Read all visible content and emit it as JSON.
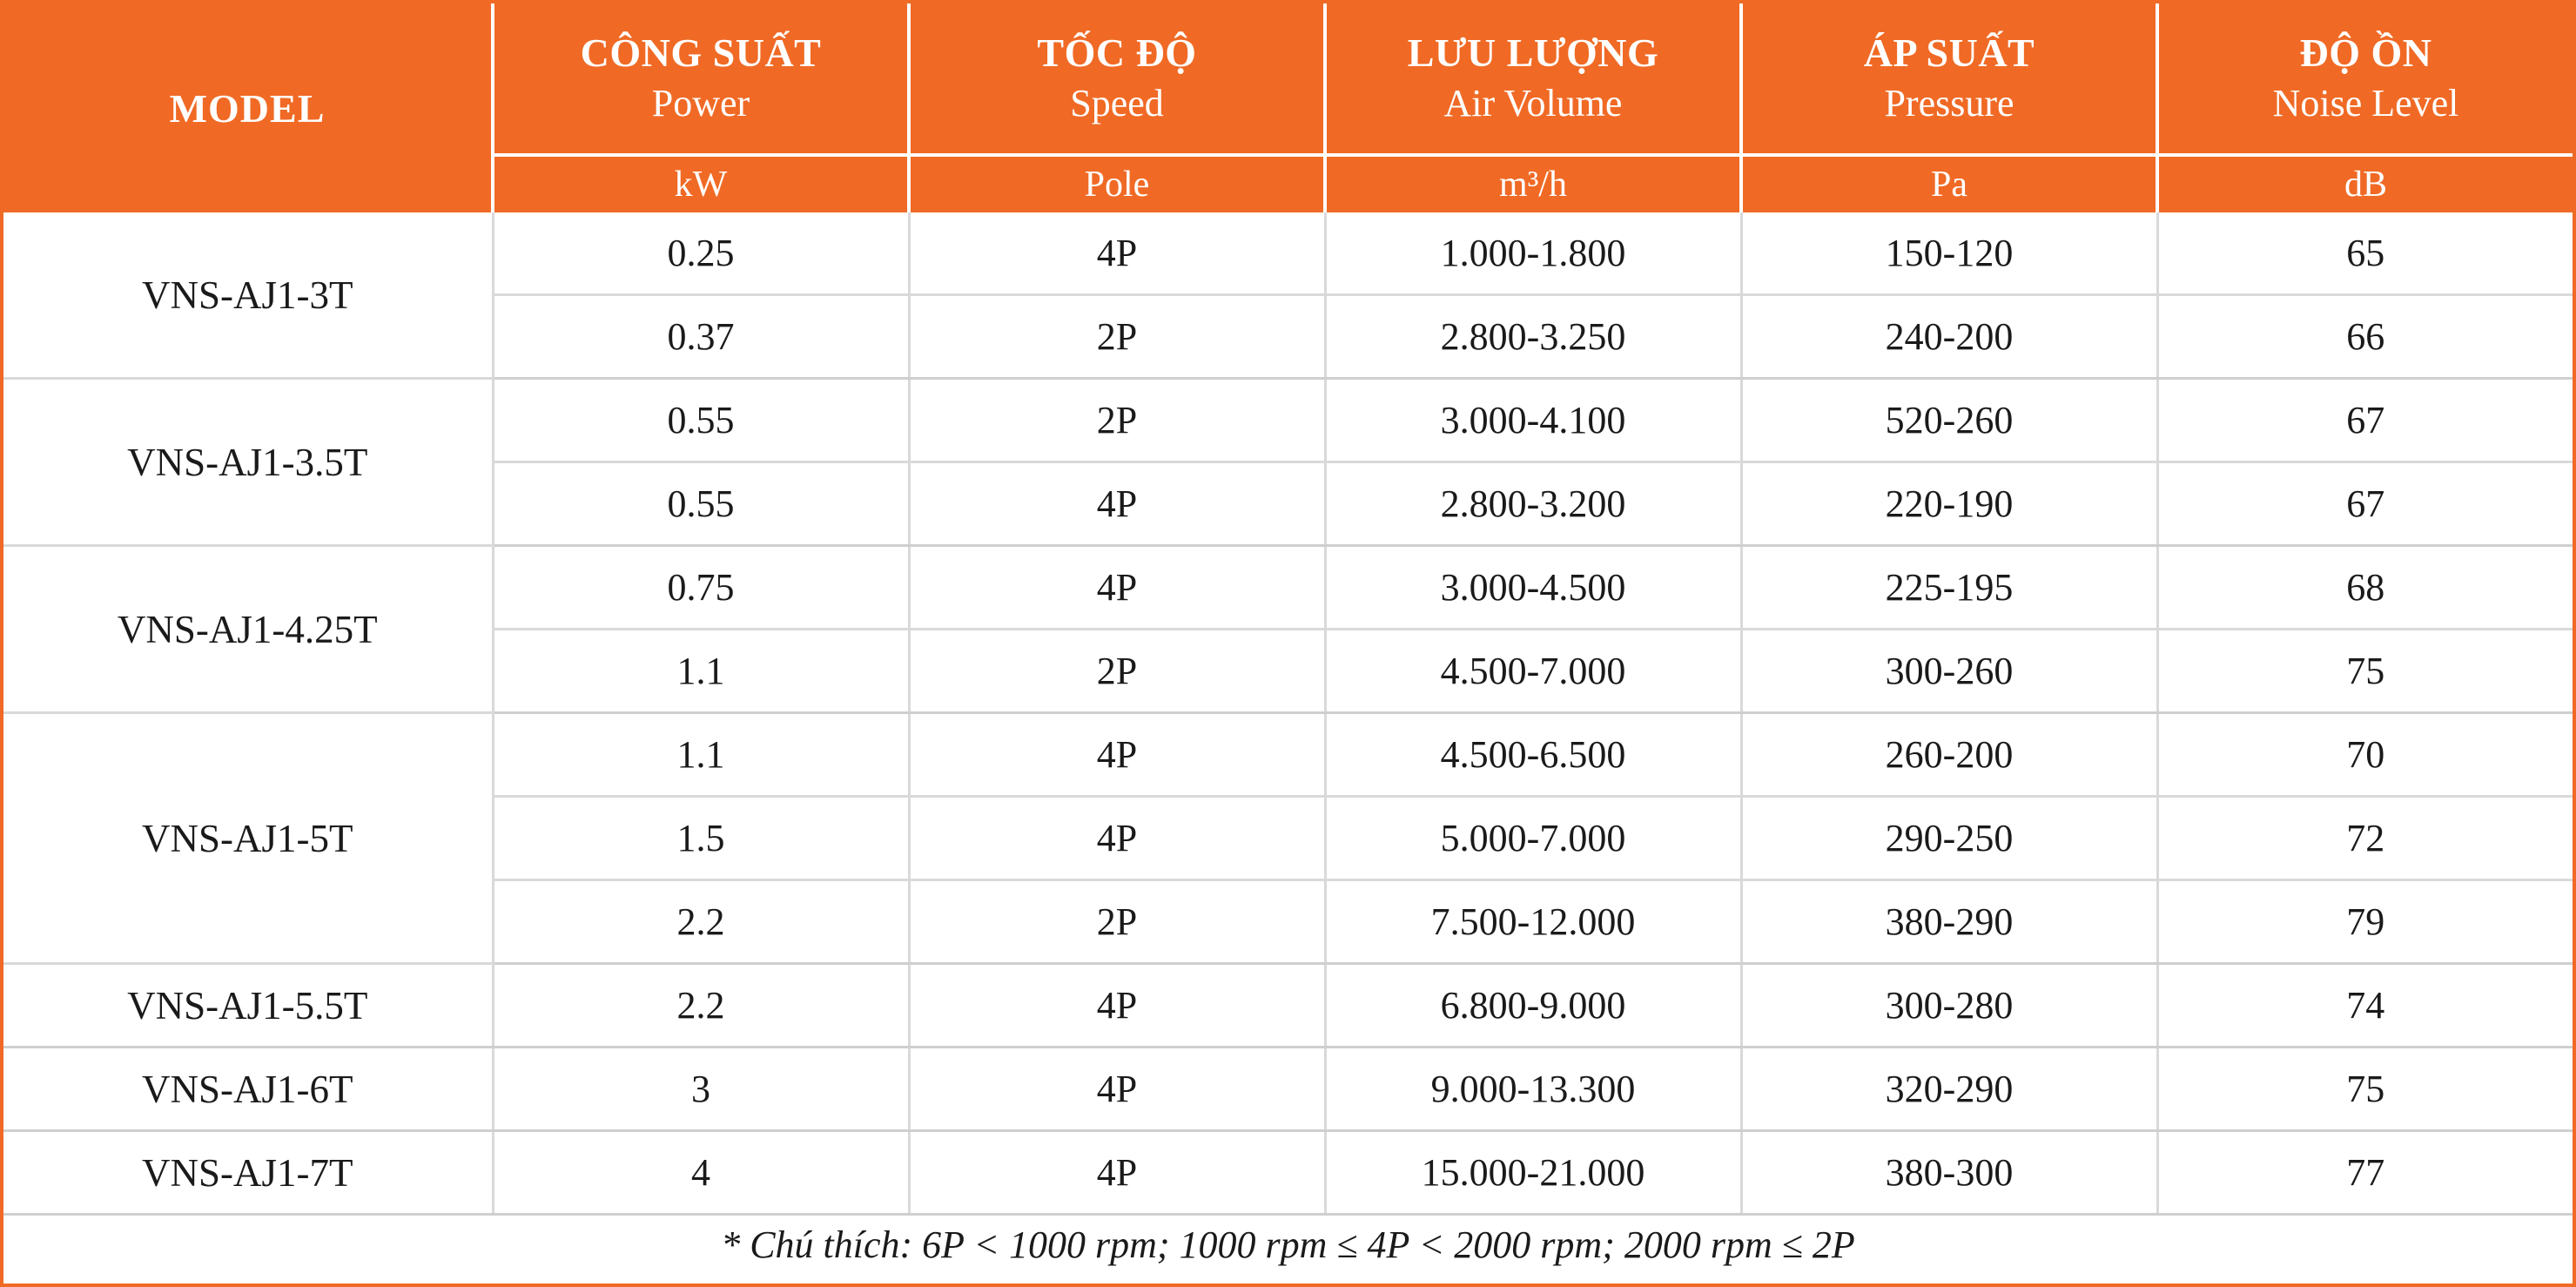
{
  "header": {
    "model": "MODEL",
    "columns": [
      {
        "vi": "CÔNG SUẤT",
        "en": "Power",
        "unit": "kW"
      },
      {
        "vi": "TỐC ĐỘ",
        "en": "Speed",
        "unit": "Pole"
      },
      {
        "vi": "LƯU LƯỢNG",
        "en": "Air Volume",
        "unit": "m³/h"
      },
      {
        "vi": "ÁP SUẤT",
        "en": "Pressure",
        "unit": "Pa"
      },
      {
        "vi": "ĐỘ ỒN",
        "en": "Noise Level",
        "unit": "dB"
      }
    ]
  },
  "rows": [
    {
      "model": "VNS-AJ1-3T",
      "power": "0.25",
      "speed": "4P",
      "air": "1.000-1.800",
      "pressure": "150-120",
      "noise": "65"
    },
    {
      "power": "0.37",
      "speed": "2P",
      "air": "2.800-3.250",
      "pressure": "240-200",
      "noise": "66"
    },
    {
      "model": "VNS-AJ1-3.5T",
      "power": "0.55",
      "speed": "2P",
      "air": "3.000-4.100",
      "pressure": "520-260",
      "noise": "67"
    },
    {
      "power": "0.55",
      "speed": "4P",
      "air": "2.800-3.200",
      "pressure": "220-190",
      "noise": "67"
    },
    {
      "model": "VNS-AJ1-4.25T",
      "power": "0.75",
      "speed": "4P",
      "air": "3.000-4.500",
      "pressure": "225-195",
      "noise": "68"
    },
    {
      "power": "1.1",
      "speed": "2P",
      "air": "4.500-7.000",
      "pressure": "300-260",
      "noise": "75"
    },
    {
      "model": "VNS-AJ1-5T",
      "power": "1.1",
      "speed": "4P",
      "air": "4.500-6.500",
      "pressure": "260-200",
      "noise": "70"
    },
    {
      "power": "1.5",
      "speed": "4P",
      "air": "5.000-7.000",
      "pressure": "290-250",
      "noise": "72"
    },
    {
      "power": "2.2",
      "speed": "2P",
      "air": "7.500-12.000",
      "pressure": "380-290",
      "noise": "79"
    },
    {
      "model": "VNS-AJ1-5.5T",
      "power": "2.2",
      "speed": "4P",
      "air": "6.800-9.000",
      "pressure": "300-280",
      "noise": "74"
    },
    {
      "model": "VNS-AJ1-6T",
      "power": "3",
      "speed": "4P",
      "air": "9.000-13.300",
      "pressure": "320-290",
      "noise": "75"
    },
    {
      "model": "VNS-AJ1-7T",
      "power": "4",
      "speed": "4P",
      "air": "15.000-21.000",
      "pressure": "380-300",
      "noise": "77"
    }
  ],
  "note": "* Chú thích: 6P < 1000 rpm;  1000 rpm ≤ 4P < 2000 rpm; 2000 rpm ≤ 2P",
  "colors": {
    "header_bg": "#F06A25",
    "header_text": "#FFFFFF",
    "grid": "#D9D9D9"
  }
}
